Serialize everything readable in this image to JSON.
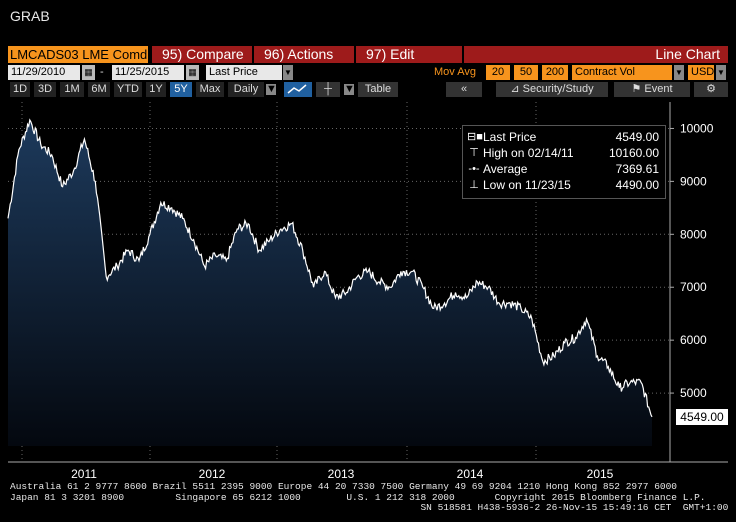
{
  "window": {
    "title": "GRAB"
  },
  "toolbar1": {
    "ticker": "LMCADS03 LME Comd",
    "compare": "95) Compare",
    "actions": "96) Actions",
    "edit": "97) Edit",
    "chart_name": "Line Chart"
  },
  "toolbar2": {
    "start_date": "11/29/2010",
    "end_date": "11/25/2015",
    "field": "Last Price",
    "mov_avg_label": "Mov Avg",
    "mov_avg": [
      "20",
      "50",
      "200"
    ],
    "volume": "Contract Vol",
    "currency": "USD",
    "dash": "-"
  },
  "toolbar3": {
    "periods": [
      "1D",
      "3D",
      "1M",
      "6M",
      "YTD",
      "1Y",
      "5Y",
      "Max"
    ],
    "active_period": "5Y",
    "frequency": "Daily",
    "table": "Table",
    "security_study": "Security/Study",
    "event": "Event",
    "arrows": "«"
  },
  "legend": {
    "rows": [
      {
        "name": "Last Price",
        "value": "4549.00"
      },
      {
        "name": "High on 02/14/11",
        "value": "10160.00"
      },
      {
        "name": "Average",
        "value": "7369.61"
      },
      {
        "name": "Low on 11/23/15",
        "value": "4490.00"
      }
    ]
  },
  "last_price_tag": "4549.00",
  "colors": {
    "accent": "#f7941d",
    "button": "#9e1b1b",
    "area_top": "#1d3a5c",
    "area_bottom": "#000000",
    "line": "#ffffff"
  },
  "chart_data": {
    "type": "area",
    "ylim": [
      4000,
      10500
    ],
    "yticks": [
      "5000",
      "6000",
      "7000",
      "8000",
      "9000",
      "10000"
    ],
    "xticks": [
      "2011",
      "2012",
      "2013",
      "2014",
      "2015"
    ],
    "x": [
      "2010-11-29",
      "2011-01",
      "2011-02-14",
      "2011-03",
      "2011-04",
      "2011-05",
      "2011-06",
      "2011-07",
      "2011-08",
      "2011-09",
      "2011-10",
      "2011-11",
      "2011-12",
      "2012-01",
      "2012-02",
      "2012-03",
      "2012-04",
      "2012-05",
      "2012-06",
      "2012-07",
      "2012-08",
      "2012-09",
      "2012-10",
      "2012-11",
      "2012-12",
      "2013-01",
      "2013-02",
      "2013-03",
      "2013-04",
      "2013-05",
      "2013-06",
      "2013-07",
      "2013-08",
      "2013-09",
      "2013-10",
      "2013-11",
      "2013-12",
      "2014-01",
      "2014-02",
      "2014-03",
      "2014-04",
      "2014-05",
      "2014-06",
      "2014-07",
      "2014-08",
      "2014-09",
      "2014-10",
      "2014-11",
      "2014-12",
      "2015-01",
      "2015-02",
      "2015-03",
      "2015-04",
      "2015-05",
      "2015-06",
      "2015-07",
      "2015-08",
      "2015-09",
      "2015-10",
      "2015-11-25"
    ],
    "series": [
      {
        "values": [
          8300,
          9600,
          10160,
          9700,
          9500,
          8900,
          9200,
          9800,
          9000,
          7200,
          7400,
          7700,
          7500,
          8000,
          8600,
          8500,
          8300,
          7900,
          7400,
          7600,
          7500,
          8100,
          8200,
          7700,
          7900,
          8100,
          8200,
          7700,
          7000,
          7300,
          6800,
          6900,
          7200,
          7300,
          7100,
          7000,
          7300,
          7300,
          7000,
          6600,
          6700,
          6900,
          6800,
          7100,
          7000,
          6700,
          6700,
          6600,
          6400,
          5600,
          5700,
          5950,
          6050,
          6400,
          5700,
          5500,
          5100,
          5200,
          5200,
          4549
        ]
      }
    ]
  },
  "footer": {
    "line1": "Australia 61 2 9777 8600 Brazil 5511 2395 9000 Europe 44 20 7330 7500 Germany 49 69 9204 1210 Hong Kong 852 2977 6000",
    "line2": "Japan 81 3 3201 8900         Singapore 65 6212 1000        U.S. 1 212 318 2000       Copyright 2015 Bloomberg Finance L.P.",
    "line3": "                                                                        SN 518581 H438-5936-2 26-Nov-15 15:49:16 CET  GMT+1:00"
  }
}
